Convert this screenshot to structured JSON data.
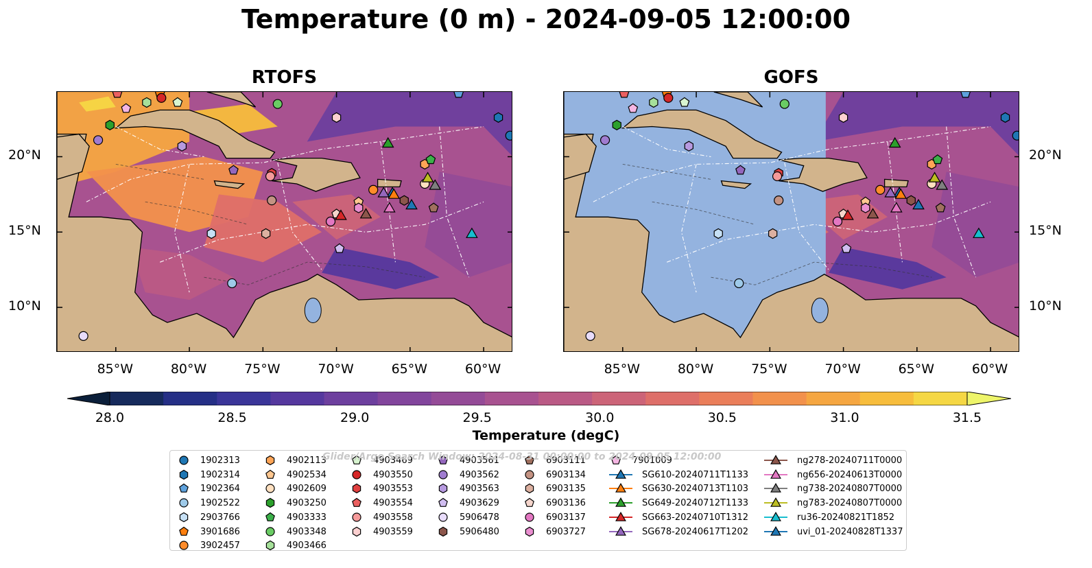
{
  "figure": {
    "title": "Temperature (0 m) - 2024-09-05 12:00:00",
    "watermark": "Glider/Argo Search Window: 2024-08-31 00:00:00 to 2024-09-05 12:00:00"
  },
  "panels": [
    {
      "title": "RTOFS"
    },
    {
      "title": "GOFS"
    }
  ],
  "axes": {
    "x_ticks": [
      "85°W",
      "80°W",
      "75°W",
      "70°W",
      "65°W",
      "60°W"
    ],
    "y_ticks": [
      "20°N",
      "15°N",
      "10°N"
    ],
    "x_values": [
      -85,
      -80,
      -75,
      -70,
      -65,
      -60
    ],
    "y_values": [
      20,
      15,
      10
    ],
    "lon_range": [
      -89,
      -58
    ],
    "lat_range": [
      7,
      24.3
    ]
  },
  "colorbar": {
    "label": "Temperature (degC)",
    "ticks": [
      "28.0",
      "28.5",
      "29.0",
      "29.5",
      "30.0",
      "30.5",
      "31.0",
      "31.5"
    ],
    "range": [
      28.0,
      31.5
    ],
    "extend": "both",
    "colors": [
      "#0b1f3a",
      "#162a5c",
      "#252f86",
      "#3a3598",
      "#55389e",
      "#6d3f9e",
      "#82459c",
      "#944b97",
      "#a85290",
      "#ba5a85",
      "#cc6478",
      "#de6f69",
      "#ea7e5a",
      "#f2914c",
      "#f5a641",
      "#f7bd3c",
      "#f5d744"
    ],
    "low_color": "#0b1f3a",
    "high_color": "#eef56a"
  },
  "map_colors": {
    "land": "#d2b48c",
    "gofs_nodata": "#94b3df",
    "coast": "#000000",
    "boundary": "#ffffff"
  },
  "legend": {
    "columns": [
      [
        {
          "label": "1902313",
          "marker": "circle",
          "color": "#1f77b4"
        },
        {
          "label": "1902314",
          "marker": "hexagon",
          "color": "#1f77b4"
        },
        {
          "label": "1902364",
          "marker": "pentagon",
          "color": "#5fa2dd"
        },
        {
          "label": "1902522",
          "marker": "circle",
          "color": "#9ecae9"
        },
        {
          "label": "2903766",
          "marker": "hexagon",
          "color": "#c6e0f5"
        },
        {
          "label": "3901686",
          "marker": "pentagon",
          "color": "#ff7f0e"
        },
        {
          "label": "3902457",
          "marker": "circle",
          "color": "#ff8c2a"
        }
      ],
      [
        {
          "label": "4902113",
          "marker": "hexagon",
          "color": "#ffa557"
        },
        {
          "label": "4902534",
          "marker": "pentagon",
          "color": "#ffc790"
        },
        {
          "label": "4902609",
          "marker": "circle",
          "color": "#ffe0c0"
        },
        {
          "label": "4903250",
          "marker": "hexagon",
          "color": "#2ca02c"
        },
        {
          "label": "4903333",
          "marker": "pentagon",
          "color": "#3cb04a"
        },
        {
          "label": "4903348",
          "marker": "circle",
          "color": "#6acc64"
        },
        {
          "label": "4903466",
          "marker": "hexagon",
          "color": "#a6e09a"
        }
      ],
      [
        {
          "label": "4903469",
          "marker": "pentagon",
          "color": "#d8f5d0"
        },
        {
          "label": "4903550",
          "marker": "circle",
          "color": "#d62728"
        },
        {
          "label": "4903553",
          "marker": "hexagon",
          "color": "#e04040"
        },
        {
          "label": "4903554",
          "marker": "pentagon",
          "color": "#eb6060"
        },
        {
          "label": "4903558",
          "marker": "circle",
          "color": "#f59a9a"
        },
        {
          "label": "4903559",
          "marker": "hexagon",
          "color": "#fcd0d0"
        }
      ],
      [
        {
          "label": "4903561",
          "marker": "pentagon",
          "color": "#9467bd"
        },
        {
          "label": "4903562",
          "marker": "circle",
          "color": "#a07cd0"
        },
        {
          "label": "4903563",
          "marker": "hexagon",
          "color": "#b79ae0"
        },
        {
          "label": "4903629",
          "marker": "pentagon",
          "color": "#d0bdf0"
        },
        {
          "label": "5906478",
          "marker": "circle",
          "color": "#e8dcfb"
        },
        {
          "label": "5906480",
          "marker": "hexagon",
          "color": "#8c564b"
        }
      ],
      [
        {
          "label": "6903111",
          "marker": "pentagon",
          "color": "#a0705f"
        },
        {
          "label": "6903134",
          "marker": "circle",
          "color": "#c49383"
        },
        {
          "label": "6903135",
          "marker": "hexagon",
          "color": "#dcb0a0"
        },
        {
          "label": "6903136",
          "marker": "pentagon",
          "color": "#f5d5cc"
        },
        {
          "label": "6903137",
          "marker": "circle",
          "color": "#e377c2"
        },
        {
          "label": "6903727",
          "marker": "hexagon",
          "color": "#ea8fd0"
        }
      ],
      [
        {
          "label": "7901009",
          "marker": "pentagon",
          "color": "#f5b6e3"
        },
        {
          "label": "SG610-20240711T1133",
          "marker": "triangle",
          "color": "#1f77b4"
        },
        {
          "label": "SG630-20240713T1103",
          "marker": "triangle",
          "color": "#ff7f0e"
        },
        {
          "label": "SG649-20240712T1133",
          "marker": "triangle",
          "color": "#2ca02c"
        },
        {
          "label": "SG663-20240710T1312",
          "marker": "triangle",
          "color": "#d62728"
        },
        {
          "label": "SG678-20240617T1202",
          "marker": "triangle",
          "color": "#9467bd"
        }
      ],
      [
        {
          "label": "ng278-20240711T0000",
          "marker": "triangle",
          "color": "#8c564b"
        },
        {
          "label": "ng656-20240613T0000",
          "marker": "triangle",
          "color": "#e377c2"
        },
        {
          "label": "ng738-20240807T0000",
          "marker": "triangle",
          "color": "#7f7f7f"
        },
        {
          "label": "ng783-20240807T0000",
          "marker": "triangle",
          "color": "#bcbd22"
        },
        {
          "label": "ru36-20240821T1852",
          "marker": "triangle",
          "color": "#17becf"
        },
        {
          "label": "uvi_01-20240828T1337",
          "marker": "triangle",
          "color": "#1f77b4"
        }
      ]
    ]
  },
  "observations": [
    {
      "id": "1902313",
      "lon": -58.2,
      "lat": 21.4
    },
    {
      "id": "1902314",
      "lon": -59.0,
      "lat": 22.6
    },
    {
      "id": "1902364",
      "lon": -61.7,
      "lat": 24.2
    },
    {
      "id": "1902522",
      "lon": -77.1,
      "lat": 11.6
    },
    {
      "id": "2903766",
      "lon": -78.5,
      "lat": 14.9
    },
    {
      "id": "3901686",
      "lon": -82.0,
      "lat": 24.2
    },
    {
      "id": "3902457",
      "lon": -67.5,
      "lat": 17.8
    },
    {
      "id": "4902113",
      "lon": -64.0,
      "lat": 19.5
    },
    {
      "id": "4902534",
      "lon": -68.5,
      "lat": 17.0
    },
    {
      "id": "4902609",
      "lon": -64.0,
      "lat": 18.2
    },
    {
      "id": "4903250",
      "lon": -85.4,
      "lat": 22.1
    },
    {
      "id": "4903333",
      "lon": -63.6,
      "lat": 19.8
    },
    {
      "id": "4903348",
      "lon": -74.0,
      "lat": 23.5
    },
    {
      "id": "4903466",
      "lon": -82.9,
      "lat": 23.6
    },
    {
      "id": "4903469",
      "lon": -80.8,
      "lat": 23.6
    },
    {
      "id": "4903550",
      "lon": -81.9,
      "lat": 23.9
    },
    {
      "id": "4903553",
      "lon": -74.4,
      "lat": 18.9
    },
    {
      "id": "4903554",
      "lon": -84.9,
      "lat": 24.2
    },
    {
      "id": "4903558",
      "lon": -74.5,
      "lat": 18.7
    },
    {
      "id": "4903559",
      "lon": -70.0,
      "lat": 22.6
    },
    {
      "id": "4903561",
      "lon": -77.0,
      "lat": 19.1
    },
    {
      "id": "4903562",
      "lon": -86.2,
      "lat": 21.1
    },
    {
      "id": "4903563",
      "lon": -80.5,
      "lat": 20.7
    },
    {
      "id": "4903629",
      "lon": -69.8,
      "lat": 13.9
    },
    {
      "id": "5906478",
      "lon": -87.2,
      "lat": 8.1
    },
    {
      "id": "5906480",
      "lon": -65.4,
      "lat": 17.1
    },
    {
      "id": "6903111",
      "lon": -63.4,
      "lat": 16.6
    },
    {
      "id": "6903134",
      "lon": -74.4,
      "lat": 17.1
    },
    {
      "id": "6903135",
      "lon": -74.8,
      "lat": 14.9
    },
    {
      "id": "6903136",
      "lon": -70.0,
      "lat": 16.2
    },
    {
      "id": "6903137",
      "lon": -70.4,
      "lat": 15.7
    },
    {
      "id": "6903727",
      "lon": -68.5,
      "lat": 16.6
    },
    {
      "id": "7901009",
      "lon": -84.3,
      "lat": 23.2
    }
  ],
  "gliders": [
    {
      "id": "SG610-20240711T1133",
      "lon": -66.2,
      "lat": 17.6
    },
    {
      "id": "SG630-20240713T1103",
      "lon": -66.1,
      "lat": 17.5
    },
    {
      "id": "SG649-20240712T1133",
      "lon": -66.5,
      "lat": 20.9
    },
    {
      "id": "SG663-20240710T1312",
      "lon": -69.7,
      "lat": 16.1
    },
    {
      "id": "SG678-20240617T1202",
      "lon": -66.8,
      "lat": 17.6
    },
    {
      "id": "ng278-20240711T0000",
      "lon": -68.0,
      "lat": 16.2
    },
    {
      "id": "ng656-20240613T0000",
      "lon": -66.4,
      "lat": 16.6
    },
    {
      "id": "ng738-20240807T0000",
      "lon": -63.3,
      "lat": 18.1
    },
    {
      "id": "ng783-20240807T0000",
      "lon": -63.8,
      "lat": 18.6
    },
    {
      "id": "ru36-20240821T1852",
      "lon": -60.8,
      "lat": 14.9
    },
    {
      "id": "uvi_01-20240828T1337",
      "lon": -64.9,
      "lat": 16.8
    }
  ]
}
